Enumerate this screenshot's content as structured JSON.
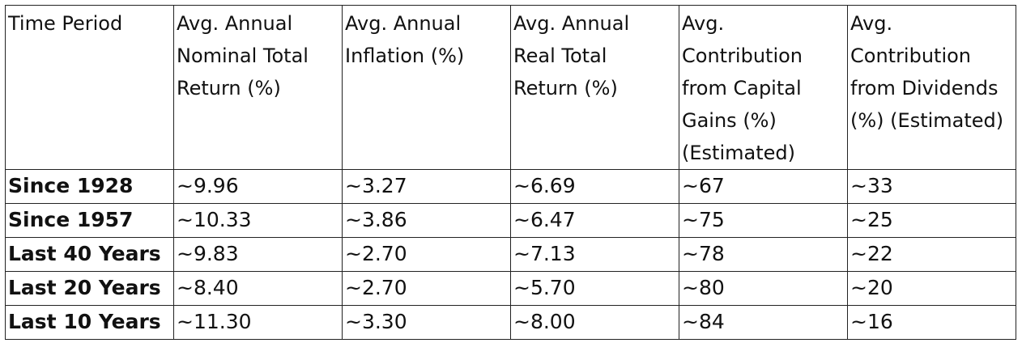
{
  "table": {
    "headers": [
      "Time Period",
      "Avg. Annual Nominal Total Return (%)",
      "Avg. Annual Inflation (%)",
      "Avg. Annual Real Total Return (%)",
      "Avg. Contribution from Capital Gains (%) (Estimated)",
      "Avg. Contribution from Dividends (%) (Estimated)"
    ],
    "rows": [
      [
        "Since 1928",
        "~9.96",
        "~3.27",
        "~6.69",
        "~67",
        "~33"
      ],
      [
        "Since 1957",
        "~10.33",
        "~3.86",
        "~6.47",
        "~75",
        "~25"
      ],
      [
        "Last 40 Years",
        "~9.83",
        "~2.70",
        "~7.13",
        "~78",
        "~22"
      ],
      [
        "Last 20 Years",
        "~8.40",
        "~2.70",
        "~5.70",
        "~80",
        "~20"
      ],
      [
        "Last 10 Years",
        "~11.30",
        "~3.30",
        "~8.00",
        "~84",
        "~16"
      ]
    ]
  }
}
